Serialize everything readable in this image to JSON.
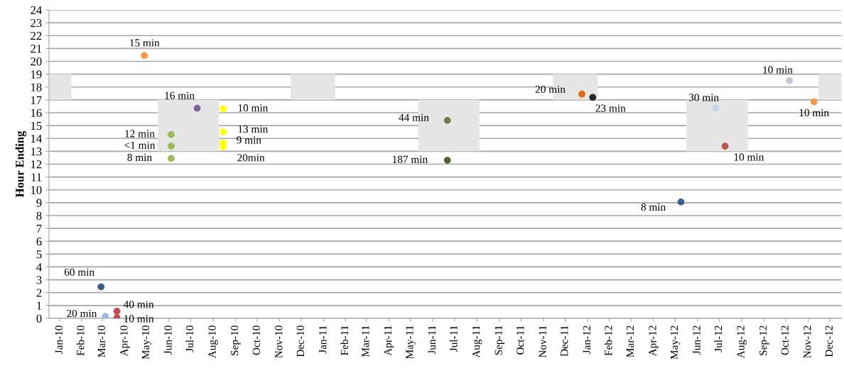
{
  "chart_data": {
    "type": "scatter",
    "ylabel": "Hour Ending",
    "grid": "y",
    "xlim": [
      "2010-01-01",
      "2013-01-01"
    ],
    "xticks": [
      {
        "value": "2010-01-16",
        "label": "Jan-10"
      },
      {
        "value": "2010-02-15",
        "label": "Feb-10"
      },
      {
        "value": "2010-03-16",
        "label": "Mar-10"
      },
      {
        "value": "2010-04-16",
        "label": "Apr-10"
      },
      {
        "value": "2010-05-16",
        "label": "May-10"
      },
      {
        "value": "2010-06-16",
        "label": "Jun-10"
      },
      {
        "value": "2010-07-16",
        "label": "Jul-10"
      },
      {
        "value": "2010-08-16",
        "label": "Aug-10"
      },
      {
        "value": "2010-09-16",
        "label": "Sep-10"
      },
      {
        "value": "2010-10-16",
        "label": "Oct-10"
      },
      {
        "value": "2010-11-16",
        "label": "Nov-10"
      },
      {
        "value": "2010-12-16",
        "label": "Dec-10"
      },
      {
        "value": "2011-01-16",
        "label": "Jan-11"
      },
      {
        "value": "2011-02-15",
        "label": "Feb-11"
      },
      {
        "value": "2011-03-16",
        "label": "Mar-11"
      },
      {
        "value": "2011-04-16",
        "label": "Apr-11"
      },
      {
        "value": "2011-05-16",
        "label": "May-11"
      },
      {
        "value": "2011-06-16",
        "label": "Jun-11"
      },
      {
        "value": "2011-07-16",
        "label": "Jul-11"
      },
      {
        "value": "2011-08-16",
        "label": "Aug-11"
      },
      {
        "value": "2011-09-16",
        "label": "Sep-11"
      },
      {
        "value": "2011-10-16",
        "label": "Oct-11"
      },
      {
        "value": "2011-11-16",
        "label": "Nov-11"
      },
      {
        "value": "2011-12-16",
        "label": "Dec-11"
      },
      {
        "value": "2012-01-16",
        "label": "Jan-12"
      },
      {
        "value": "2012-02-15",
        "label": "Feb-12"
      },
      {
        "value": "2012-03-16",
        "label": "Mar-12"
      },
      {
        "value": "2012-04-16",
        "label": "Apr-12"
      },
      {
        "value": "2012-05-16",
        "label": "May-12"
      },
      {
        "value": "2012-06-16",
        "label": "Jun-12"
      },
      {
        "value": "2012-07-16",
        "label": "Jul-12"
      },
      {
        "value": "2012-08-16",
        "label": "Aug-12"
      },
      {
        "value": "2012-09-16",
        "label": "Sep-12"
      },
      {
        "value": "2012-10-16",
        "label": "Oct-12"
      },
      {
        "value": "2012-11-16",
        "label": "Nov-12"
      },
      {
        "value": "2012-12-16",
        "label": "Dec-12"
      }
    ],
    "ylim": [
      0,
      24
    ],
    "yticks": [
      0,
      1,
      2,
      3,
      4,
      5,
      6,
      7,
      8,
      9,
      10,
      11,
      12,
      13,
      14,
      15,
      16,
      17,
      18,
      19,
      20,
      21,
      22,
      23,
      24
    ],
    "series": [
      {
        "type": "bar",
        "color": "#e6e6e6",
        "x": [
          "2010-01-01",
          "2011-01-01",
          "2011-12-30",
          "2012-12-31"
        ],
        "values": [
          2,
          2,
          2,
          2
        ],
        "base": [
          17,
          17,
          17,
          17
        ]
      },
      {
        "type": "bar",
        "color": "#e6e6e6",
        "x": [
          "2010-07-13",
          "2011-07-08",
          "2012-07-13"
        ],
        "values": [
          4,
          4,
          4
        ],
        "base": [
          13,
          13,
          13
        ]
      },
      {
        "marker": "circle",
        "x": [
          "2010-03-14",
          "2010-03-20",
          "2010-04-05",
          "2010-04-05",
          "2010-05-13",
          "2010-06-19",
          "2010-06-19",
          "2010-06-19",
          "2010-07-25",
          "2010-08-30",
          "2010-08-30",
          "2010-08-30",
          "2010-08-30",
          "2011-07-06",
          "2011-07-06",
          "2012-01-08",
          "2012-01-23",
          "2012-05-24",
          "2012-07-11",
          "2012-07-24",
          "2012-10-21",
          "2012-11-24"
        ],
        "values": [
          2.45,
          0.15,
          0.55,
          0.05,
          20.45,
          14.3,
          13.4,
          12.45,
          16.35,
          16.3,
          14.5,
          13.65,
          13.35,
          15.4,
          12.3,
          17.45,
          17.2,
          9.05,
          16.35,
          13.4,
          18.5,
          16.85
        ],
        "colors": [
          "#3b5e8c",
          "#9dbbe3",
          "#c0504d",
          "#c0504d",
          "#f79646",
          "#9bbb59",
          "#9bbb59",
          "#9bbb59",
          "#8064a2",
          "#ffff00",
          "#ffff00",
          "#ffff00",
          "#ffff00",
          "#6e7e4a",
          "#4f6228",
          "#e46c0a",
          "#262626",
          "#3a5f94",
          "#c6d4e8",
          "#c0504d",
          "#ccc0da",
          "#f79646"
        ]
      }
    ],
    "annotations": [
      {
        "text": "60 min",
        "x": "2010-03-14",
        "y": 2.45
      },
      {
        "text": "20 min",
        "x": "2010-03-20",
        "y": 0.15
      },
      {
        "text": "40 min",
        "x": "2010-04-05",
        "y": 0.55
      },
      {
        "text": "10 min",
        "x": "2010-04-05",
        "y": 0.05
      },
      {
        "text": "15 min",
        "x": "2010-05-13",
        "y": 20.45
      },
      {
        "text": "12 min",
        "x": "2010-06-19",
        "y": 14.3
      },
      {
        "text": "<1 min",
        "x": "2010-06-19",
        "y": 13.4
      },
      {
        "text": "8 min",
        "x": "2010-06-19",
        "y": 12.45
      },
      {
        "text": "16 min",
        "x": "2010-07-25",
        "y": 16.35
      },
      {
        "text": "10 min",
        "x": "2010-08-30",
        "y": 16.3
      },
      {
        "text": "13 min",
        "x": "2010-08-30",
        "y": 14.5
      },
      {
        "text": "9 min",
        "x": "2010-08-30",
        "y": 13.65
      },
      {
        "text": "20min",
        "x": "2010-08-30",
        "y": 13.35
      },
      {
        "text": "44 min",
        "x": "2011-07-06",
        "y": 15.4
      },
      {
        "text": "187 min",
        "x": "2011-07-06",
        "y": 12.3
      },
      {
        "text": "20 min",
        "x": "2012-01-08",
        "y": 17.45
      },
      {
        "text": "23 min",
        "x": "2012-01-23",
        "y": 17.2
      },
      {
        "text": "8 min",
        "x": "2012-05-24",
        "y": 9.05
      },
      {
        "text": "30 min",
        "x": "2012-07-11",
        "y": 16.35
      },
      {
        "text": "10 min",
        "x": "2012-07-24",
        "y": 13.4
      },
      {
        "text": "10 min",
        "x": "2012-10-21",
        "y": 18.5
      },
      {
        "text": "10 min",
        "x": "2012-11-24",
        "y": 16.85
      }
    ]
  }
}
